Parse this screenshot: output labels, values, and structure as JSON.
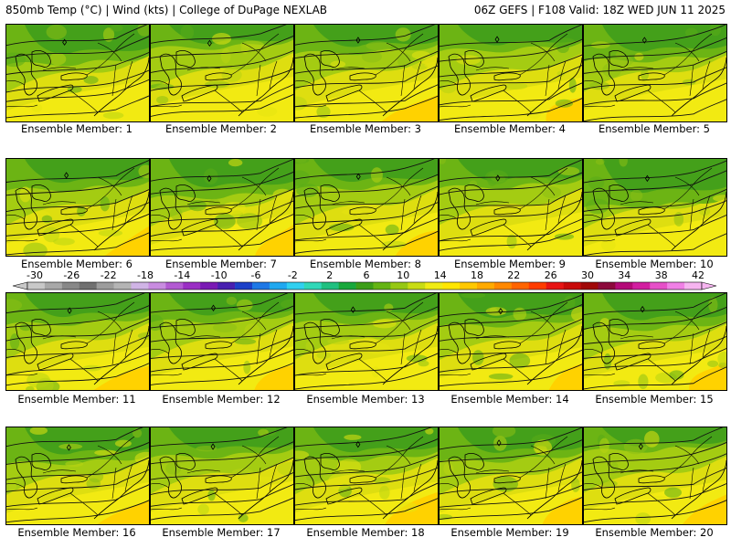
{
  "header": {
    "left_title": "850mb Temp (°C) | Wind (kts) | College of DuPage NEXLAB",
    "right_title": "06Z GEFS | F108 Valid: 18Z WED JUN 11 2025"
  },
  "colorbar": {
    "labels": [
      "-30",
      "-26",
      "-22",
      "-18",
      "-14",
      "-10",
      "-6",
      "-2",
      "2",
      "6",
      "10",
      "14",
      "18",
      "22",
      "26",
      "30",
      "34",
      "38",
      "42"
    ],
    "colors": [
      "#c8c8c8",
      "#a8a8a8",
      "#888888",
      "#707070",
      "#9c9c9c",
      "#b4b4b4",
      "#d0b4e6",
      "#c88ce0",
      "#b25ad2",
      "#9a2ec4",
      "#7a1ab4",
      "#4820b0",
      "#1c40c8",
      "#1e78e6",
      "#20a8f0",
      "#30d0f0",
      "#30d8b8",
      "#20c080",
      "#18a83c",
      "#3c9e18",
      "#64b414",
      "#96c814",
      "#c8dc14",
      "#f0ec14",
      "#ffe600",
      "#ffc800",
      "#ffaa00",
      "#ff8800",
      "#ff6400",
      "#ff3c00",
      "#e81414",
      "#c80a0a",
      "#a00808",
      "#8c0a3c",
      "#b40a78",
      "#d21ea0",
      "#e650c8",
      "#f080e6",
      "#f6b4f0"
    ]
  },
  "members": [
    {
      "caption": "Ensemble Member: 1",
      "green": 0.62,
      "seed": 11
    },
    {
      "caption": "Ensemble Member: 2",
      "green": 0.3,
      "seed": 23
    },
    {
      "caption": "Ensemble Member: 3",
      "green": 0.4,
      "seed": 37
    },
    {
      "caption": "Ensemble Member: 4",
      "green": 0.35,
      "seed": 41
    },
    {
      "caption": "Ensemble Member: 5",
      "green": 0.55,
      "seed": 53
    },
    {
      "caption": "Ensemble Member: 6",
      "green": 0.45,
      "seed": 61
    },
    {
      "caption": "Ensemble Member: 7",
      "green": 0.6,
      "seed": 73
    },
    {
      "caption": "Ensemble Member: 8",
      "green": 0.42,
      "seed": 83
    },
    {
      "caption": "Ensemble Member: 9",
      "green": 0.4,
      "seed": 97
    },
    {
      "caption": "Ensemble Member: 10",
      "green": 0.78,
      "seed": 101
    },
    {
      "caption": "Ensemble Member: 11",
      "green": 0.45,
      "seed": 113
    },
    {
      "caption": "Ensemble Member: 12",
      "green": 0.4,
      "seed": 127
    },
    {
      "caption": "Ensemble Member: 13",
      "green": 0.42,
      "seed": 131
    },
    {
      "caption": "Ensemble Member: 14",
      "green": 0.48,
      "seed": 139
    },
    {
      "caption": "Ensemble Member: 15",
      "green": 0.55,
      "seed": 149
    },
    {
      "caption": "Ensemble Member: 16",
      "green": 0.55,
      "seed": 157
    },
    {
      "caption": "Ensemble Member: 17",
      "green": 0.42,
      "seed": 163
    },
    {
      "caption": "Ensemble Member: 18",
      "green": 0.48,
      "seed": 173
    },
    {
      "caption": "Ensemble Member: 19",
      "green": 0.5,
      "seed": 181
    },
    {
      "caption": "Ensemble Member: 20",
      "green": 0.3,
      "seed": 191
    }
  ]
}
